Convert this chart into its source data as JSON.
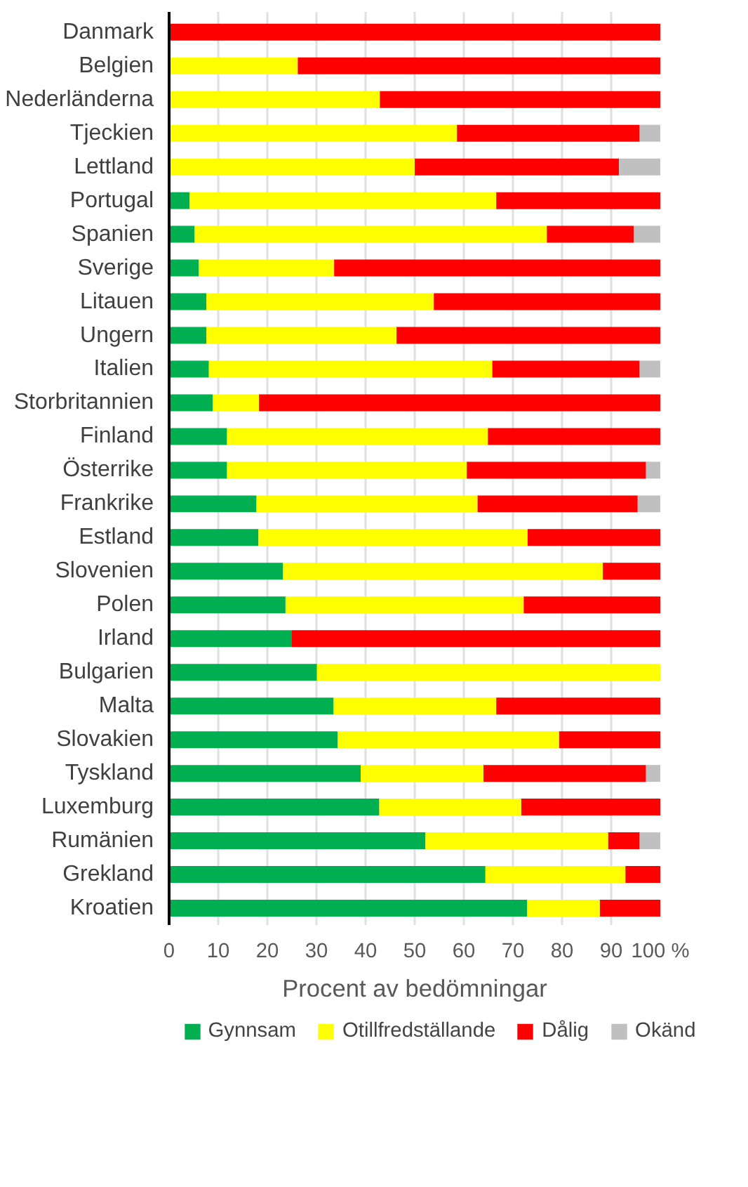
{
  "chart_data": {
    "type": "bar",
    "orientation": "horizontal",
    "stacked": true,
    "xlabel": "Procent av bedömningar",
    "categories": [
      "Danmark",
      "Belgien",
      "Nederländerna",
      "Tjeckien",
      "Lettland",
      "Portugal",
      "Spanien",
      "Sverige",
      "Litauen",
      "Ungern",
      "Italien",
      "Storbritannien",
      "Finland",
      "Österrike",
      "Frankrike",
      "Estland",
      "Slovenien",
      "Polen",
      "Irland",
      "Bulgarien",
      "Malta",
      "Slovakien",
      "Tyskland",
      "Luxemburg",
      "Rumänien",
      "Grekland",
      "Kroatien"
    ],
    "series": [
      {
        "name": "Gynnsam",
        "color": "#00b050",
        "values": [
          0,
          0,
          0,
          0,
          0,
          4.2,
          5.2,
          6.0,
          7.6,
          7.6,
          8.1,
          8.9,
          11.8,
          11.8,
          17.8,
          18.2,
          23.2,
          23.7,
          25.0,
          30.1,
          33.5,
          34.3,
          39.0,
          42.8,
          52.2,
          64.4,
          72.9
        ]
      },
      {
        "name": "Otillfredställande",
        "color": "#ffff00",
        "values": [
          0,
          26.2,
          42.9,
          58.6,
          50.0,
          62.4,
          71.7,
          27.6,
          46.3,
          38.7,
          57.7,
          9.4,
          53.1,
          48.8,
          45.0,
          54.8,
          65.1,
          48.5,
          0,
          69.9,
          33.1,
          45.1,
          25.0,
          28.9,
          37.2,
          28.5,
          14.8
        ]
      },
      {
        "name": "Dålig",
        "color": "#ff0000",
        "values": [
          100,
          73.8,
          57.1,
          37.2,
          41.6,
          33.4,
          17.7,
          66.4,
          46.1,
          53.7,
          30.0,
          81.7,
          35.1,
          36.5,
          32.6,
          27.0,
          11.7,
          27.8,
          75.0,
          0,
          33.4,
          20.6,
          33.1,
          28.3,
          6.4,
          7.1,
          12.3
        ]
      },
      {
        "name": "Okänd",
        "color": "#c0c0c0",
        "values": [
          0,
          0,
          0,
          4.2,
          8.4,
          0,
          5.4,
          0,
          0,
          0,
          4.2,
          0,
          0,
          2.9,
          4.6,
          0,
          0,
          0,
          0,
          0,
          0,
          0,
          2.9,
          0,
          4.2,
          0,
          0
        ]
      }
    ],
    "xlim": [
      0,
      100
    ],
    "xticks": [
      0,
      10,
      20,
      30,
      40,
      50,
      60,
      70,
      80,
      90,
      {
        "value": 100,
        "label": "100 %"
      }
    ],
    "grid": "x",
    "legend": "bottom"
  }
}
